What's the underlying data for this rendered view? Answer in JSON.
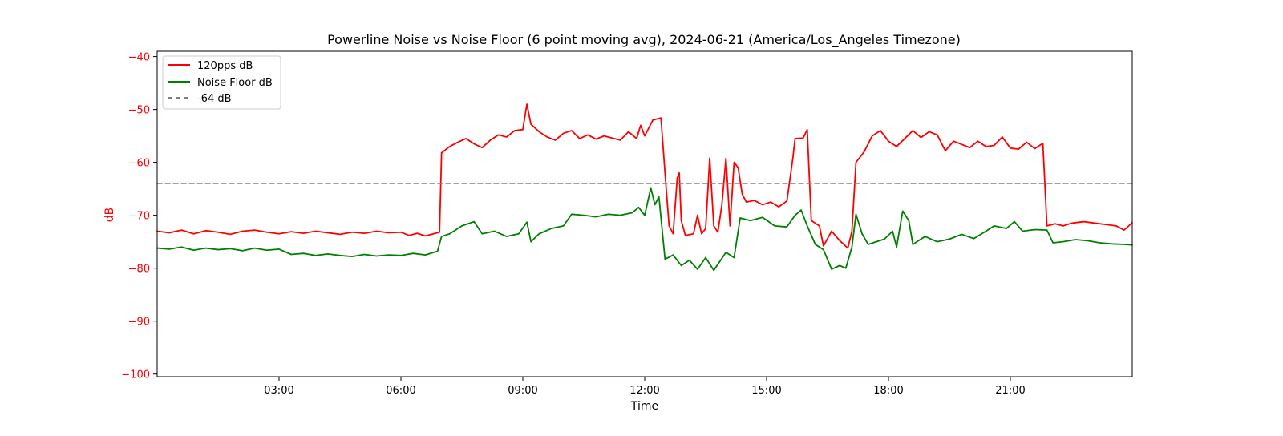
{
  "chart_data": {
    "type": "line",
    "title": "Powerline Noise vs Noise Floor (6 point moving avg), 2024-06-21 (America/Los_Angeles Timezone)",
    "xlabel": "Time",
    "ylabel": "dB",
    "x_unit": "hours since 00:00",
    "xlim": [
      0,
      24
    ],
    "ylim": [
      -100.5,
      -39
    ],
    "x_ticks": [
      {
        "value": 3,
        "label": "03:00"
      },
      {
        "value": 6,
        "label": "06:00"
      },
      {
        "value": 9,
        "label": "09:00"
      },
      {
        "value": 12,
        "label": "12:00"
      },
      {
        "value": 15,
        "label": "15:00"
      },
      {
        "value": 18,
        "label": "18:00"
      },
      {
        "value": 21,
        "label": "21:00"
      }
    ],
    "y_ticks": [
      {
        "value": -40,
        "label": "−40"
      },
      {
        "value": -50,
        "label": "−50"
      },
      {
        "value": -60,
        "label": "−60"
      },
      {
        "value": -70,
        "label": "−70"
      },
      {
        "value": -80,
        "label": "−80"
      },
      {
        "value": -90,
        "label": "−90"
      },
      {
        "value": -100,
        "label": "−100"
      }
    ],
    "grid": false,
    "legend_position": "top-left",
    "series": [
      {
        "name": "120pps dB",
        "color": "#ff0000",
        "style": "solid",
        "points": [
          [
            0.0,
            -73.0
          ],
          [
            0.3,
            -73.3
          ],
          [
            0.6,
            -72.8
          ],
          [
            0.9,
            -73.5
          ],
          [
            1.2,
            -72.9
          ],
          [
            1.5,
            -73.2
          ],
          [
            1.8,
            -73.6
          ],
          [
            2.1,
            -73.0
          ],
          [
            2.4,
            -72.8
          ],
          [
            2.7,
            -73.2
          ],
          [
            3.0,
            -73.5
          ],
          [
            3.3,
            -73.1
          ],
          [
            3.6,
            -73.4
          ],
          [
            3.9,
            -73.0
          ],
          [
            4.2,
            -73.3
          ],
          [
            4.5,
            -73.6
          ],
          [
            4.8,
            -73.2
          ],
          [
            5.1,
            -73.4
          ],
          [
            5.4,
            -73.0
          ],
          [
            5.7,
            -73.3
          ],
          [
            6.0,
            -73.2
          ],
          [
            6.2,
            -73.8
          ],
          [
            6.4,
            -73.4
          ],
          [
            6.6,
            -73.9
          ],
          [
            6.8,
            -73.5
          ],
          [
            6.95,
            -73.2
          ],
          [
            7.0,
            -58.2
          ],
          [
            7.2,
            -57.0
          ],
          [
            7.4,
            -56.2
          ],
          [
            7.6,
            -55.5
          ],
          [
            7.8,
            -56.5
          ],
          [
            8.0,
            -57.2
          ],
          [
            8.2,
            -55.8
          ],
          [
            8.4,
            -54.8
          ],
          [
            8.6,
            -55.2
          ],
          [
            8.8,
            -54.0
          ],
          [
            9.0,
            -53.8
          ],
          [
            9.1,
            -49.0
          ],
          [
            9.2,
            -52.8
          ],
          [
            9.4,
            -54.2
          ],
          [
            9.6,
            -55.2
          ],
          [
            9.8,
            -55.8
          ],
          [
            10.0,
            -54.5
          ],
          [
            10.2,
            -54.0
          ],
          [
            10.4,
            -55.5
          ],
          [
            10.6,
            -54.8
          ],
          [
            10.8,
            -55.6
          ],
          [
            11.0,
            -55.0
          ],
          [
            11.2,
            -55.4
          ],
          [
            11.4,
            -55.8
          ],
          [
            11.6,
            -54.2
          ],
          [
            11.8,
            -55.5
          ],
          [
            11.9,
            -53.0
          ],
          [
            12.0,
            -55.0
          ],
          [
            12.2,
            -52.0
          ],
          [
            12.4,
            -51.6
          ],
          [
            12.5,
            -62.0
          ],
          [
            12.6,
            -72.0
          ],
          [
            12.7,
            -73.5
          ],
          [
            12.8,
            -63.0
          ],
          [
            12.85,
            -62.0
          ],
          [
            12.9,
            -71.0
          ],
          [
            13.0,
            -73.8
          ],
          [
            13.2,
            -73.5
          ],
          [
            13.3,
            -70.0
          ],
          [
            13.4,
            -73.5
          ],
          [
            13.5,
            -72.5
          ],
          [
            13.6,
            -59.2
          ],
          [
            13.7,
            -72.0
          ],
          [
            13.8,
            -73.2
          ],
          [
            13.9,
            -68.0
          ],
          [
            14.0,
            -59.2
          ],
          [
            14.1,
            -72.0
          ],
          [
            14.2,
            -60.0
          ],
          [
            14.3,
            -61.0
          ],
          [
            14.4,
            -66.0
          ],
          [
            14.5,
            -67.5
          ],
          [
            14.7,
            -67.2
          ],
          [
            14.9,
            -68.0
          ],
          [
            15.1,
            -67.5
          ],
          [
            15.3,
            -68.4
          ],
          [
            15.5,
            -67.3
          ],
          [
            15.65,
            -59.0
          ],
          [
            15.7,
            -55.5
          ],
          [
            15.9,
            -55.4
          ],
          [
            16.0,
            -53.8
          ],
          [
            16.1,
            -71.0
          ],
          [
            16.3,
            -72.0
          ],
          [
            16.4,
            -75.8
          ],
          [
            16.6,
            -73.0
          ],
          [
            16.8,
            -74.8
          ],
          [
            17.0,
            -76.2
          ],
          [
            17.1,
            -73.0
          ],
          [
            17.2,
            -60.0
          ],
          [
            17.4,
            -58.0
          ],
          [
            17.6,
            -55.0
          ],
          [
            17.8,
            -54.0
          ],
          [
            18.0,
            -56.0
          ],
          [
            18.2,
            -57.0
          ],
          [
            18.4,
            -55.5
          ],
          [
            18.6,
            -54.0
          ],
          [
            18.8,
            -55.3
          ],
          [
            19.0,
            -54.2
          ],
          [
            19.2,
            -54.8
          ],
          [
            19.4,
            -57.8
          ],
          [
            19.6,
            -56.0
          ],
          [
            19.8,
            -56.6
          ],
          [
            20.0,
            -57.2
          ],
          [
            20.2,
            -56.0
          ],
          [
            20.4,
            -57.0
          ],
          [
            20.6,
            -56.8
          ],
          [
            20.8,
            -55.2
          ],
          [
            21.0,
            -57.3
          ],
          [
            21.2,
            -57.5
          ],
          [
            21.4,
            -56.2
          ],
          [
            21.6,
            -57.4
          ],
          [
            21.8,
            -56.4
          ],
          [
            21.9,
            -72.0
          ],
          [
            22.1,
            -71.6
          ],
          [
            22.3,
            -72.0
          ],
          [
            22.5,
            -71.5
          ],
          [
            22.8,
            -71.2
          ],
          [
            23.1,
            -71.5
          ],
          [
            23.4,
            -71.8
          ],
          [
            23.6,
            -72.0
          ],
          [
            23.8,
            -72.8
          ],
          [
            24.0,
            -71.4
          ]
        ]
      },
      {
        "name": "Noise Floor dB",
        "color": "#008000",
        "style": "solid",
        "points": [
          [
            0.0,
            -76.2
          ],
          [
            0.3,
            -76.4
          ],
          [
            0.6,
            -76.0
          ],
          [
            0.9,
            -76.6
          ],
          [
            1.2,
            -76.2
          ],
          [
            1.5,
            -76.5
          ],
          [
            1.8,
            -76.3
          ],
          [
            2.1,
            -76.7
          ],
          [
            2.4,
            -76.2
          ],
          [
            2.7,
            -76.6
          ],
          [
            3.0,
            -76.4
          ],
          [
            3.3,
            -77.4
          ],
          [
            3.6,
            -77.2
          ],
          [
            3.9,
            -77.6
          ],
          [
            4.2,
            -77.3
          ],
          [
            4.5,
            -77.6
          ],
          [
            4.8,
            -77.8
          ],
          [
            5.1,
            -77.4
          ],
          [
            5.4,
            -77.7
          ],
          [
            5.7,
            -77.5
          ],
          [
            6.0,
            -77.6
          ],
          [
            6.3,
            -77.2
          ],
          [
            6.6,
            -77.5
          ],
          [
            6.9,
            -76.8
          ],
          [
            7.0,
            -74.0
          ],
          [
            7.2,
            -73.5
          ],
          [
            7.5,
            -72.0
          ],
          [
            7.8,
            -71.2
          ],
          [
            8.0,
            -73.5
          ],
          [
            8.3,
            -73.0
          ],
          [
            8.6,
            -74.0
          ],
          [
            8.9,
            -73.5
          ],
          [
            9.1,
            -71.3
          ],
          [
            9.2,
            -75.0
          ],
          [
            9.4,
            -73.5
          ],
          [
            9.7,
            -72.5
          ],
          [
            10.0,
            -72.0
          ],
          [
            10.2,
            -69.8
          ],
          [
            10.5,
            -70.0
          ],
          [
            10.8,
            -70.3
          ],
          [
            11.1,
            -69.8
          ],
          [
            11.4,
            -70.0
          ],
          [
            11.7,
            -69.5
          ],
          [
            11.85,
            -68.5
          ],
          [
            12.0,
            -70.0
          ],
          [
            12.15,
            -64.8
          ],
          [
            12.25,
            -68.0
          ],
          [
            12.35,
            -66.5
          ],
          [
            12.5,
            -78.3
          ],
          [
            12.7,
            -77.5
          ],
          [
            12.9,
            -79.5
          ],
          [
            13.1,
            -78.5
          ],
          [
            13.3,
            -80.2
          ],
          [
            13.5,
            -78.0
          ],
          [
            13.7,
            -80.4
          ],
          [
            14.0,
            -77.0
          ],
          [
            14.2,
            -78.0
          ],
          [
            14.35,
            -70.5
          ],
          [
            14.6,
            -71.0
          ],
          [
            14.9,
            -70.4
          ],
          [
            15.2,
            -72.0
          ],
          [
            15.5,
            -72.2
          ],
          [
            15.7,
            -70.0
          ],
          [
            15.85,
            -69.0
          ],
          [
            16.0,
            -72.0
          ],
          [
            16.2,
            -75.5
          ],
          [
            16.4,
            -76.5
          ],
          [
            16.6,
            -80.2
          ],
          [
            16.8,
            -79.5
          ],
          [
            16.95,
            -80.0
          ],
          [
            17.1,
            -76.0
          ],
          [
            17.2,
            -69.8
          ],
          [
            17.35,
            -73.5
          ],
          [
            17.5,
            -75.5
          ],
          [
            17.7,
            -75.0
          ],
          [
            17.9,
            -74.5
          ],
          [
            18.1,
            -73.0
          ],
          [
            18.2,
            -76.0
          ],
          [
            18.35,
            -69.2
          ],
          [
            18.5,
            -71.0
          ],
          [
            18.6,
            -75.5
          ],
          [
            18.9,
            -74.0
          ],
          [
            19.2,
            -75.0
          ],
          [
            19.5,
            -74.5
          ],
          [
            19.8,
            -73.6
          ],
          [
            20.1,
            -74.4
          ],
          [
            20.4,
            -73.0
          ],
          [
            20.6,
            -72.0
          ],
          [
            20.9,
            -72.5
          ],
          [
            21.1,
            -71.2
          ],
          [
            21.3,
            -73.0
          ],
          [
            21.6,
            -72.7
          ],
          [
            21.9,
            -72.8
          ],
          [
            22.05,
            -75.2
          ],
          [
            22.3,
            -75.0
          ],
          [
            22.6,
            -74.6
          ],
          [
            22.9,
            -74.8
          ],
          [
            23.2,
            -75.2
          ],
          [
            23.5,
            -75.4
          ],
          [
            23.8,
            -75.5
          ],
          [
            24.0,
            -75.6
          ]
        ]
      },
      {
        "name": "-64 dB",
        "color": "#808080",
        "style": "dashed",
        "points": [
          [
            0.0,
            -64
          ],
          [
            24.0,
            -64
          ]
        ]
      }
    ]
  }
}
